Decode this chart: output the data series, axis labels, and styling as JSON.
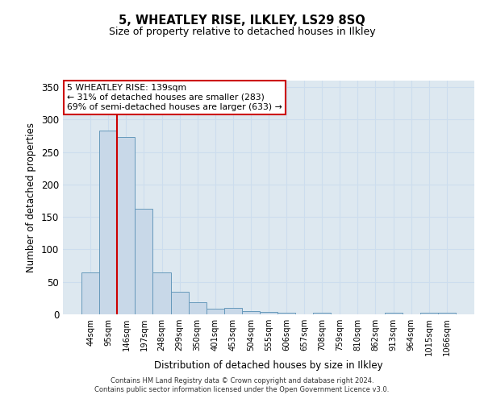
{
  "title": "5, WHEATLEY RISE, ILKLEY, LS29 8SQ",
  "subtitle": "Size of property relative to detached houses in Ilkley",
  "xlabel": "Distribution of detached houses by size in Ilkley",
  "ylabel": "Number of detached properties",
  "categories": [
    "44sqm",
    "95sqm",
    "146sqm",
    "197sqm",
    "248sqm",
    "299sqm",
    "350sqm",
    "401sqm",
    "453sqm",
    "504sqm",
    "555sqm",
    "606sqm",
    "657sqm",
    "708sqm",
    "759sqm",
    "810sqm",
    "862sqm",
    "913sqm",
    "964sqm",
    "1015sqm",
    "1066sqm"
  ],
  "values": [
    65,
    283,
    273,
    163,
    65,
    35,
    19,
    9,
    10,
    5,
    4,
    3,
    0,
    3,
    0,
    0,
    0,
    3,
    0,
    2,
    2
  ],
  "bar_color": "#c8d8e8",
  "bar_edge_color": "#6699bb",
  "property_line_color": "#cc0000",
  "annotation_text_line1": "5 WHEATLEY RISE: 139sqm",
  "annotation_text_line2": "← 31% of detached houses are smaller (283)",
  "annotation_text_line3": "69% of semi-detached houses are larger (633) →",
  "annotation_box_facecolor": "#ffffff",
  "annotation_box_edgecolor": "#cc0000",
  "grid_color": "#ccddee",
  "background_color": "#dde8f0",
  "ylim": [
    0,
    360
  ],
  "yticks": [
    0,
    50,
    100,
    150,
    200,
    250,
    300,
    350
  ],
  "footer_line1": "Contains HM Land Registry data © Crown copyright and database right 2024.",
  "footer_line2": "Contains public sector information licensed under the Open Government Licence v3.0."
}
